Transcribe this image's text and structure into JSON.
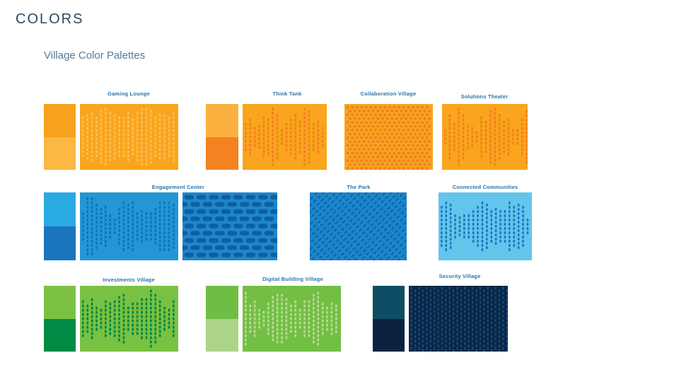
{
  "page": {
    "title": "COLORS",
    "subtitle": "Village Color Palettes"
  },
  "palettes": [
    {
      "id": "gaming-lounge",
      "label": "Gaming Lounge",
      "swatch": [
        "#F6A21D",
        "#FBB843"
      ],
      "panels": [
        {
          "pattern": "wave-dots",
          "bg": "#F9A51D",
          "fg": "#FCBF55",
          "fill": "high"
        }
      ]
    },
    {
      "id": "think-tank",
      "label": "Think Tank",
      "swatch": [
        "#FBB040",
        "#F58220"
      ],
      "panels": [
        {
          "pattern": "wave-dots",
          "bg": "#F9A51D",
          "fg": "#F47E20"
        }
      ]
    },
    {
      "id": "collaboration-village",
      "label": "Collaboration Village",
      "panels": [
        {
          "pattern": "dot-grid",
          "bg": "#F9A51D",
          "fg": "#F08124"
        }
      ]
    },
    {
      "id": "solutions-theater",
      "label": "Solutions Theater",
      "panels": [
        {
          "pattern": "wave-dots",
          "bg": "#F9A51D",
          "fg": "#F47E20"
        }
      ]
    },
    {
      "id": "engagement-center",
      "label": "Engagement Center",
      "swatch": [
        "#29ABE2",
        "#1B75BC"
      ],
      "panels": [
        {
          "pattern": "wave-dots",
          "bg": "#2496D5",
          "fg": "#1172B8"
        },
        {
          "pattern": "bricks",
          "bg": "#1F86C9",
          "fg": "#0D5FA3"
        }
      ]
    },
    {
      "id": "the-park",
      "label": "The Park",
      "panels": [
        {
          "pattern": "diagonal-lines",
          "bg": "#1C86CA",
          "fg": "#0E6AAD"
        }
      ]
    },
    {
      "id": "connected-communities",
      "label": "Connected Communities",
      "panels": [
        {
          "pattern": "wave-dots",
          "bg": "#63C5EC",
          "fg": "#1C78BE"
        }
      ]
    },
    {
      "id": "investments-village",
      "label": "Investments Village",
      "swatch": [
        "#7AC143",
        "#008B44"
      ],
      "panels": [
        {
          "pattern": "wave-dots",
          "bg": "#79C143",
          "fg": "#00873F"
        }
      ]
    },
    {
      "id": "digital-building-village",
      "label": "Digital Building Village",
      "swatch": [
        "#6FBE44",
        "#ABD488"
      ],
      "panels": [
        {
          "pattern": "wave-dots",
          "bg": "#72BF44",
          "fg": "#B8DB93"
        }
      ]
    },
    {
      "id": "security-village",
      "label": "Security Village",
      "swatch": [
        "#0E4D64",
        "#0A2240"
      ],
      "panels": [
        {
          "pattern": "dash-grid",
          "bg": "#0A2643",
          "fg": "#15497A"
        }
      ]
    }
  ]
}
